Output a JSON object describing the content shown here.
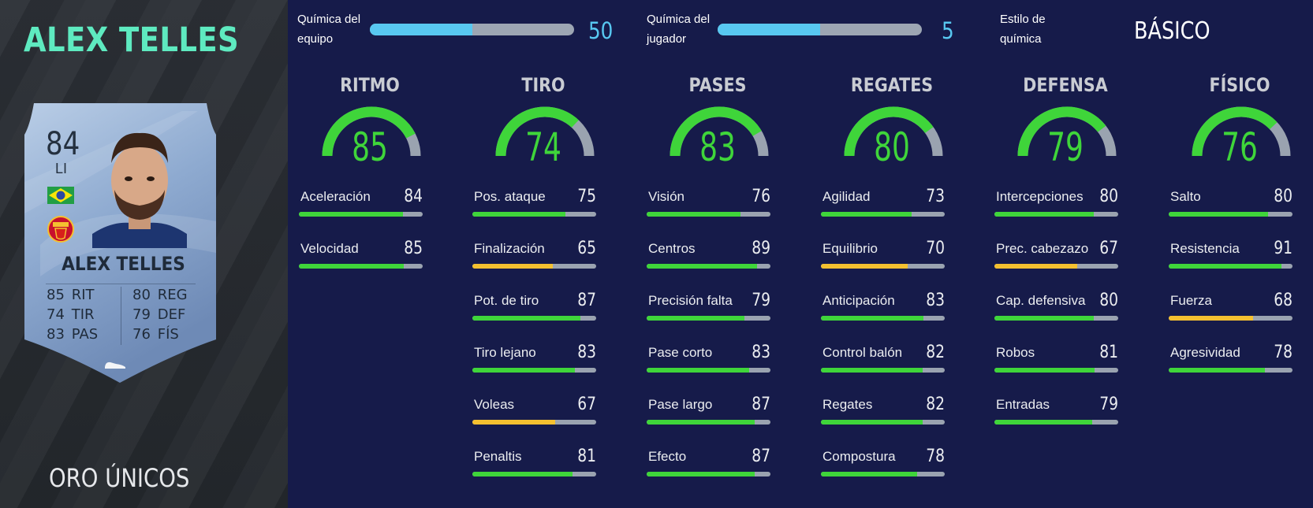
{
  "player": {
    "name": "ALEX TELLES",
    "card_type": "ORO ÚNICOS"
  },
  "card": {
    "rating": "84",
    "position": "LI",
    "name": "ALEX TELLES",
    "stats": [
      {
        "value": "85",
        "label": "RIT"
      },
      {
        "value": "74",
        "label": "TIR"
      },
      {
        "value": "83",
        "label": "PAS"
      },
      {
        "value": "80",
        "label": "REG"
      },
      {
        "value": "79",
        "label": "DEF"
      },
      {
        "value": "76",
        "label": "FÍS"
      }
    ]
  },
  "chemistry": {
    "team": {
      "label": "Química del\nequipo",
      "value": "50",
      "fill_fraction": 0.5
    },
    "player": {
      "label": "Química del\njugador",
      "value": "5",
      "fill_fraction": 0.5
    },
    "style": {
      "label": "Estilo de\nquímica",
      "value": "BÁSICO"
    }
  },
  "colors": {
    "green": "#3fd53a",
    "yellow": "#f4c030",
    "chem_blue": "#58c8f1",
    "title_teal": "#5eeac0"
  },
  "categories": [
    {
      "title": "RITMO",
      "value": "85",
      "attributes": [
        {
          "name": "Aceleración",
          "value": "84",
          "color": "green"
        },
        {
          "name": "Velocidad",
          "value": "85",
          "color": "green"
        }
      ]
    },
    {
      "title": "TIRO",
      "value": "74",
      "attributes": [
        {
          "name": "Pos. ataque",
          "value": "75",
          "color": "green"
        },
        {
          "name": "Finalización",
          "value": "65",
          "color": "yellow"
        },
        {
          "name": "Pot. de tiro",
          "value": "87",
          "color": "green"
        },
        {
          "name": "Tiro lejano",
          "value": "83",
          "color": "green"
        },
        {
          "name": "Voleas",
          "value": "67",
          "color": "yellow"
        },
        {
          "name": "Penaltis",
          "value": "81",
          "color": "green"
        }
      ]
    },
    {
      "title": "PASES",
      "value": "83",
      "attributes": [
        {
          "name": "Visión",
          "value": "76",
          "color": "green"
        },
        {
          "name": "Centros",
          "value": "89",
          "color": "green"
        },
        {
          "name": "Precisión falta",
          "value": "79",
          "color": "green"
        },
        {
          "name": "Pase corto",
          "value": "83",
          "color": "green"
        },
        {
          "name": "Pase largo",
          "value": "87",
          "color": "green"
        },
        {
          "name": "Efecto",
          "value": "87",
          "color": "green"
        }
      ]
    },
    {
      "title": "REGATES",
      "value": "80",
      "attributes": [
        {
          "name": "Agilidad",
          "value": "73",
          "color": "green"
        },
        {
          "name": "Equilibrio",
          "value": "70",
          "color": "yellow"
        },
        {
          "name": "Anticipación",
          "value": "83",
          "color": "green"
        },
        {
          "name": "Control balón",
          "value": "82",
          "color": "green"
        },
        {
          "name": "Regates",
          "value": "82",
          "color": "green"
        },
        {
          "name": "Compostura",
          "value": "78",
          "color": "green"
        }
      ]
    },
    {
      "title": "DEFENSA",
      "value": "79",
      "attributes": [
        {
          "name": "Intercepciones",
          "value": "80",
          "color": "green"
        },
        {
          "name": "Prec. cabezazo",
          "value": "67",
          "color": "yellow"
        },
        {
          "name": "Cap. defensiva",
          "value": "80",
          "color": "green"
        },
        {
          "name": "Robos",
          "value": "81",
          "color": "green"
        },
        {
          "name": "Entradas",
          "value": "79",
          "color": "green"
        }
      ]
    },
    {
      "title": "FÍSICO",
      "value": "76",
      "attributes": [
        {
          "name": "Salto",
          "value": "80",
          "color": "green"
        },
        {
          "name": "Resistencia",
          "value": "91",
          "color": "green"
        },
        {
          "name": "Fuerza",
          "value": "68",
          "color": "yellow"
        },
        {
          "name": "Agresividad",
          "value": "78",
          "color": "green"
        }
      ]
    }
  ]
}
